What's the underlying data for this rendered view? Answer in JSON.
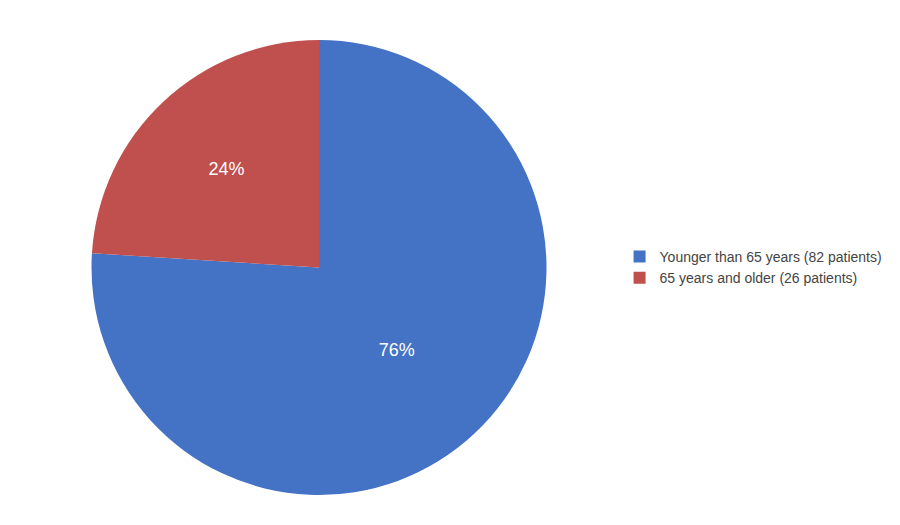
{
  "chart_data": {
    "type": "pie",
    "categories": [
      "Younger than 65 years (82 patients)",
      "65 years and older (26 patients)"
    ],
    "values": [
      76,
      24
    ],
    "value_labels": [
      "76%",
      "24%"
    ],
    "colors": [
      "#4472C4",
      "#C0504D"
    ],
    "data_labels": true,
    "legend": "right"
  }
}
